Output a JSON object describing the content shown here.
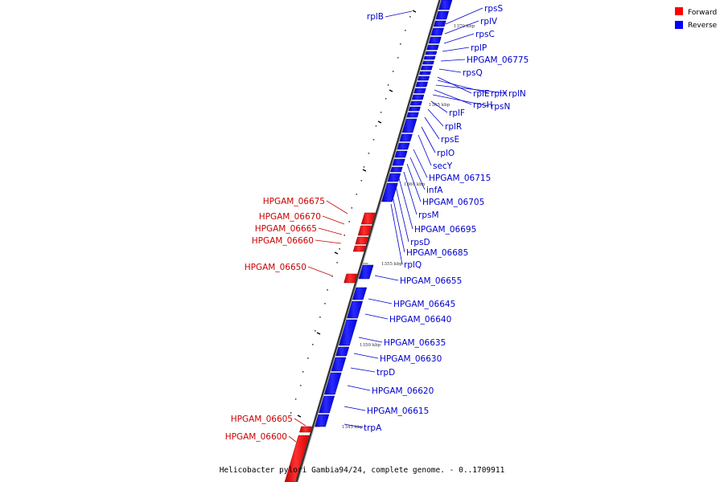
{
  "legend": {
    "forward": {
      "label": "Forward",
      "color": "#ff0000"
    },
    "reverse": {
      "label": "Reverse",
      "color": "#0000ff"
    }
  },
  "caption": "Helicobacter pylori Gambia94/24, complete genome. - 0..1709911",
  "ticks": [
    "1370 kbp",
    "1365 kbp",
    "1360 kbp",
    "1355 kbp",
    "1350 kbp",
    "1345 kbp"
  ],
  "reverse_labels": [
    "rpsS",
    "rplV",
    "rpsC",
    "rplP",
    "HPGAM_06775",
    "rpsQ",
    "rplE",
    "rplX",
    "rplN",
    "rpsH",
    "rpsN",
    "rplF",
    "rplR",
    "rpsE",
    "rplO",
    "secY",
    "HPGAM_06715",
    "infA",
    "HPGAM_06705",
    "rpsM",
    "HPGAM_06695",
    "rpsD",
    "HPGAM_06685",
    "rplQ",
    "HPGAM_06655",
    "HPGAM_06645",
    "HPGAM_06640",
    "HPGAM_06635",
    "HPGAM_06630",
    "trpD",
    "HPGAM_06620",
    "HPGAM_06615",
    "trpA"
  ],
  "left_reverse_labels": [
    "rplB"
  ],
  "forward_labels": [
    "HPGAM_06675",
    "HPGAM_06670",
    "HPGAM_06665",
    "HPGAM_06660",
    "HPGAM_06650",
    "HPGAM_06605",
    "HPGAM_06600"
  ]
}
